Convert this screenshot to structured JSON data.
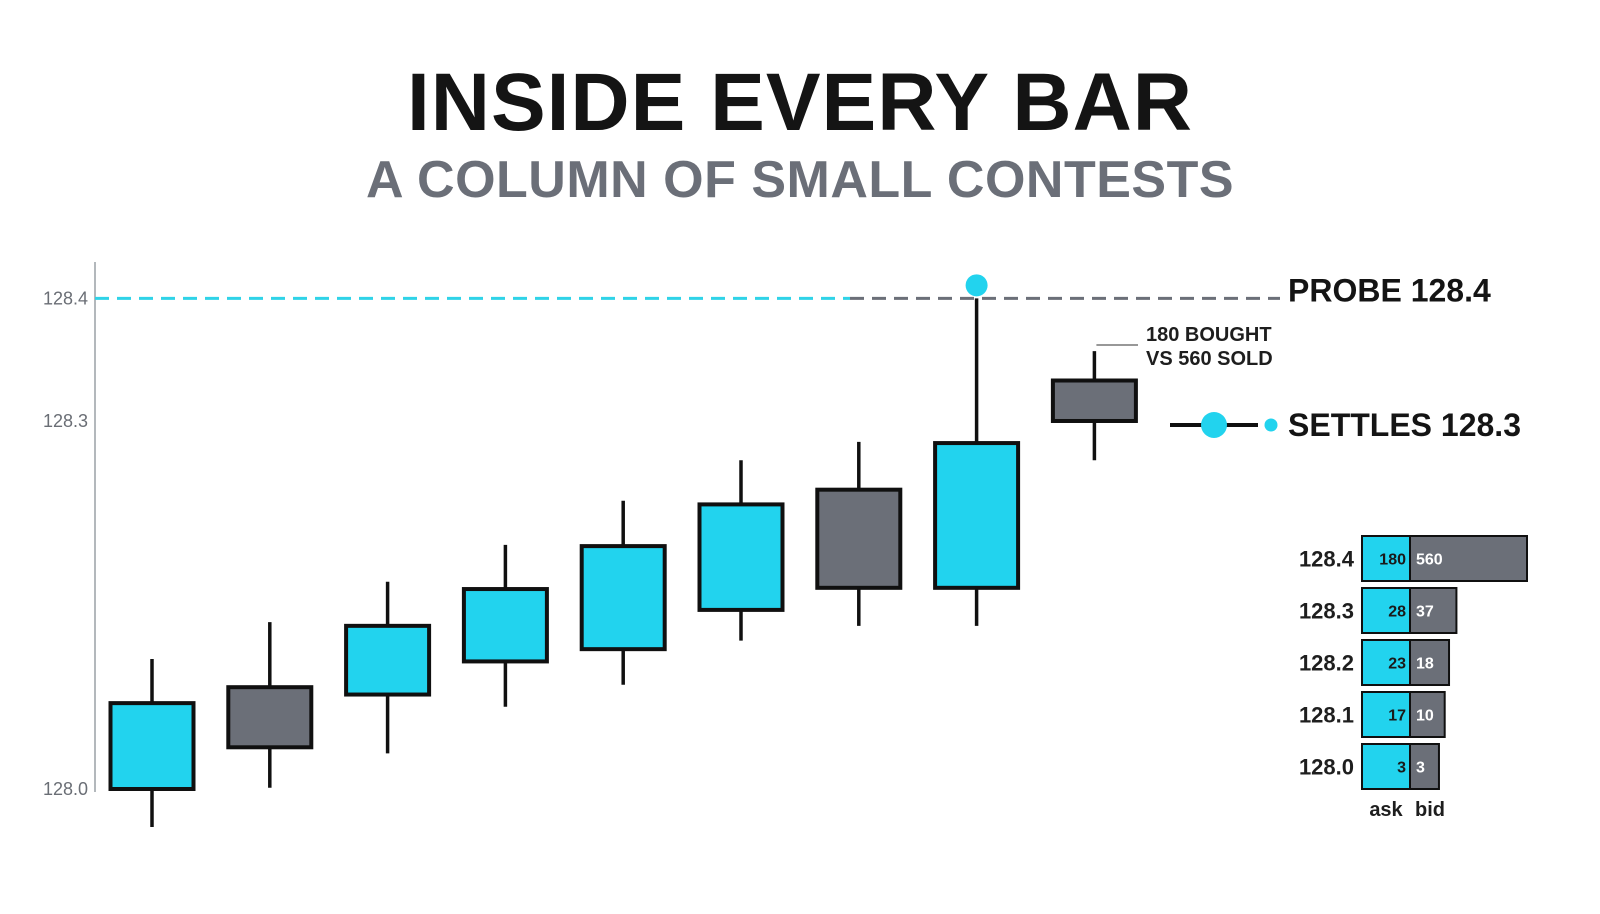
{
  "title": "INSIDE EVERY BAR",
  "subtitle": "A COLUMN OF SMALL CONTESTS",
  "colors": {
    "up": "#22d3ee",
    "down": "#6b6f78",
    "outline": "#101010",
    "probe_line": "#2fd3e8",
    "probe_line_gray": "#6b6f78",
    "dot": "#22d3ee",
    "axis": "#9aa0a6",
    "bid_fill": "#6b6f78",
    "text_dark": "#141414"
  },
  "chart_data": {
    "type": "candlestick",
    "y_axis": {
      "ticks": [
        128.0,
        128.3,
        128.4
      ],
      "tick_labels": [
        "128.0",
        "128.3",
        "128.4"
      ],
      "ylim": [
        127.97,
        128.43
      ]
    },
    "candles": [
      {
        "open": 128.0,
        "close": 128.07,
        "high": 128.106,
        "low": 127.969,
        "direction": "up"
      },
      {
        "open": 128.083,
        "close": 128.034,
        "high": 128.136,
        "low": 128.001,
        "direction": "down"
      },
      {
        "open": 128.077,
        "close": 128.133,
        "high": 128.169,
        "low": 128.029,
        "direction": "up"
      },
      {
        "open": 128.104,
        "close": 128.163,
        "high": 128.199,
        "low": 128.067,
        "direction": "up"
      },
      {
        "open": 128.114,
        "close": 128.198,
        "high": 128.235,
        "low": 128.085,
        "direction": "up"
      },
      {
        "open": 128.146,
        "close": 128.232,
        "high": 128.268,
        "low": 128.121,
        "direction": "up"
      },
      {
        "open": 128.244,
        "close": 128.164,
        "high": 128.283,
        "low": 128.133,
        "direction": "down"
      },
      {
        "open": 128.164,
        "close": 128.282,
        "high": 128.4,
        "low": 128.133,
        "direction": "up"
      },
      {
        "open": 128.333,
        "close": 128.3,
        "high": 128.357,
        "low": 128.268,
        "direction": "down"
      }
    ],
    "probe": {
      "price": 128.4,
      "label": "PROBE 128.4"
    },
    "settle": {
      "price": 128.3,
      "label": "SETTLES 128.3"
    },
    "annotation": {
      "line1": "180 BOUGHT",
      "line2": "VS 560 SOLD"
    },
    "footprint": {
      "column_labels": {
        "ask": "ask",
        "bid": "bid"
      },
      "rows": [
        {
          "price": "128.4",
          "ask": 180,
          "bid": 560
        },
        {
          "price": "128.3",
          "ask": 28,
          "bid": 37
        },
        {
          "price": "128.2",
          "ask": 23,
          "bid": 18
        },
        {
          "price": "128.1",
          "ask": 17,
          "bid": 10
        },
        {
          "price": "128.0",
          "ask": 3,
          "bid": 3
        }
      ]
    }
  }
}
